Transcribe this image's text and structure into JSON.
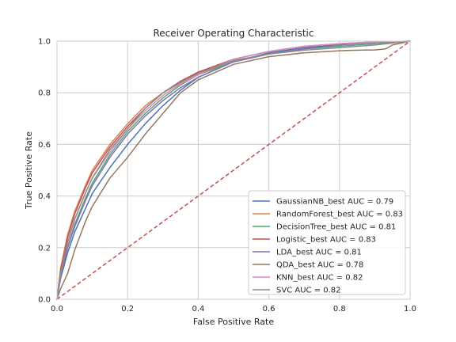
{
  "chart_data": {
    "type": "line",
    "title": "Receiver Operating Characteristic",
    "xlabel": "False Positive Rate",
    "ylabel": "True Positive Rate",
    "xlim": [
      0,
      1
    ],
    "ylim": [
      0,
      1
    ],
    "xticks": [
      "0.0",
      "0.2",
      "0.4",
      "0.6",
      "0.8",
      "1.0"
    ],
    "yticks": [
      "0.0",
      "0.2",
      "0.4",
      "0.6",
      "0.8",
      "1.0"
    ],
    "grid": true,
    "legend_position": "lower-right",
    "reference_line": {
      "x": [
        0,
        1
      ],
      "y": [
        0,
        1
      ],
      "color": "#c44e52",
      "style": "dashed"
    },
    "series": [
      {
        "name": "GaussianNB_best AUC = 0.79",
        "color": "#4c72b0",
        "x": [
          0,
          0.01,
          0.03,
          0.05,
          0.08,
          0.1,
          0.15,
          0.2,
          0.25,
          0.3,
          0.35,
          0.4,
          0.5,
          0.6,
          0.7,
          0.8,
          0.9,
          1.0
        ],
        "y": [
          0,
          0.08,
          0.18,
          0.26,
          0.35,
          0.41,
          0.51,
          0.6,
          0.68,
          0.75,
          0.81,
          0.86,
          0.92,
          0.955,
          0.975,
          0.988,
          0.996,
          1.0
        ]
      },
      {
        "name": "RandomForest_best AUC = 0.83",
        "color": "#dd8452",
        "x": [
          0,
          0.01,
          0.03,
          0.05,
          0.08,
          0.1,
          0.15,
          0.2,
          0.25,
          0.3,
          0.35,
          0.4,
          0.5,
          0.6,
          0.7,
          0.8,
          0.9,
          1.0
        ],
        "y": [
          0,
          0.12,
          0.25,
          0.34,
          0.44,
          0.5,
          0.6,
          0.68,
          0.75,
          0.8,
          0.84,
          0.88,
          0.93,
          0.96,
          0.98,
          0.99,
          0.997,
          1.0
        ]
      },
      {
        "name": "DecisionTree_best AUC = 0.81",
        "color": "#55a868",
        "x": [
          0,
          0.01,
          0.03,
          0.05,
          0.08,
          0.1,
          0.15,
          0.2,
          0.25,
          0.3,
          0.35,
          0.4,
          0.5,
          0.6,
          0.7,
          0.8,
          0.9,
          1.0
        ],
        "y": [
          0,
          0.09,
          0.2,
          0.29,
          0.39,
          0.45,
          0.56,
          0.65,
          0.72,
          0.78,
          0.83,
          0.87,
          0.92,
          0.95,
          0.97,
          0.98,
          0.99,
          1.0
        ]
      },
      {
        "name": "Logistic_best AUC = 0.83",
        "color": "#c44e52",
        "x": [
          0,
          0.01,
          0.03,
          0.05,
          0.08,
          0.1,
          0.15,
          0.2,
          0.25,
          0.3,
          0.35,
          0.4,
          0.5,
          0.6,
          0.7,
          0.8,
          0.9,
          1.0
        ],
        "y": [
          0,
          0.11,
          0.24,
          0.33,
          0.43,
          0.49,
          0.59,
          0.67,
          0.74,
          0.8,
          0.845,
          0.88,
          0.93,
          0.96,
          0.98,
          0.99,
          0.997,
          1.0
        ]
      },
      {
        "name": "LDA_best AUC = 0.81",
        "color": "#8172b3",
        "x": [
          0,
          0.01,
          0.03,
          0.05,
          0.08,
          0.1,
          0.15,
          0.2,
          0.25,
          0.3,
          0.35,
          0.4,
          0.5,
          0.6,
          0.7,
          0.8,
          0.9,
          1.0
        ],
        "y": [
          0,
          0.09,
          0.2,
          0.28,
          0.38,
          0.44,
          0.55,
          0.64,
          0.71,
          0.77,
          0.82,
          0.86,
          0.92,
          0.95,
          0.97,
          0.985,
          0.995,
          1.0
        ]
      },
      {
        "name": "QDA_best AUC = 0.78",
        "color": "#937860",
        "x": [
          0,
          0.01,
          0.03,
          0.05,
          0.08,
          0.1,
          0.15,
          0.2,
          0.25,
          0.3,
          0.35,
          0.4,
          0.5,
          0.6,
          0.7,
          0.8,
          0.85,
          0.9,
          0.93,
          0.95,
          1.0
        ],
        "y": [
          0,
          0.04,
          0.1,
          0.19,
          0.3,
          0.36,
          0.47,
          0.55,
          0.64,
          0.72,
          0.8,
          0.85,
          0.91,
          0.94,
          0.955,
          0.963,
          0.965,
          0.966,
          0.97,
          0.985,
          1.0
        ]
      },
      {
        "name": "KNN_best AUC = 0.82",
        "color": "#da8bc3",
        "x": [
          0,
          0.01,
          0.03,
          0.05,
          0.08,
          0.1,
          0.15,
          0.2,
          0.25,
          0.3,
          0.35,
          0.4,
          0.5,
          0.6,
          0.7,
          0.8,
          0.9,
          1.0
        ],
        "y": [
          0,
          0.1,
          0.22,
          0.31,
          0.41,
          0.47,
          0.57,
          0.66,
          0.73,
          0.79,
          0.835,
          0.87,
          0.93,
          0.96,
          0.98,
          0.99,
          0.997,
          1.0
        ]
      },
      {
        "name": "SVC AUC = 0.82",
        "color": "#8c8c8c",
        "x": [
          0,
          0.01,
          0.03,
          0.05,
          0.08,
          0.1,
          0.15,
          0.2,
          0.25,
          0.3,
          0.35,
          0.4,
          0.5,
          0.6,
          0.7,
          0.8,
          0.9,
          1.0
        ],
        "y": [
          0,
          0.1,
          0.22,
          0.31,
          0.41,
          0.47,
          0.58,
          0.66,
          0.74,
          0.8,
          0.84,
          0.875,
          0.925,
          0.95,
          0.965,
          0.975,
          0.985,
          1.0
        ]
      }
    ]
  }
}
